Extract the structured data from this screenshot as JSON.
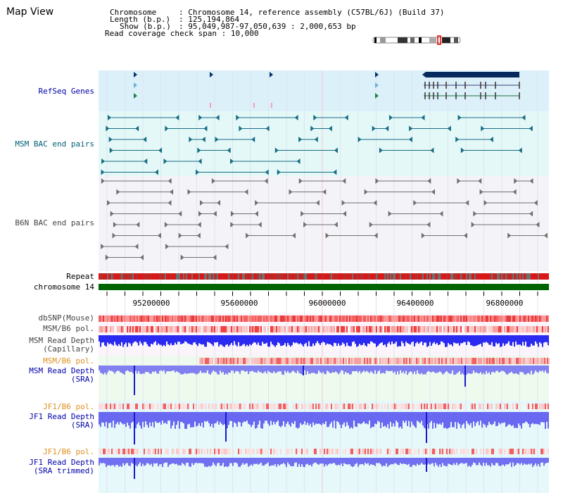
{
  "page": {
    "title": "Map View"
  },
  "info": {
    "chromosome_label": "Chromosome",
    "chromosome_value": "Chromosome 14, reference assembly (C57BL/6J) (Build 37)",
    "length_label": "Length (b.p.)",
    "length_value": "125,194,864",
    "show_label": "Show (b.p.)",
    "show_value": "95,049,987-97,050,639 : 2,000,653 bp",
    "coverage_label": "Read coverage check span",
    "coverage_value": "10,000"
  },
  "tracks": {
    "refseq": "RefSeq Genes",
    "msm_bac": "MSM BAC end pairs",
    "b6n_bac": "B6N BAC end pairs",
    "repeat": "Repeat",
    "chromosome": "chromosome 14",
    "dbsnp": "dbSNP(Mouse)",
    "msm_b6_pol": "MSM/B6 pol.",
    "msm_depth_cap_1": "MSM Read Depth",
    "msm_depth_cap_2": "(Capillary)",
    "msm_b6_pol2": "MSM/B6 pol.",
    "msm_depth_sra_1": "MSM Read Depth",
    "msm_depth_sra_2": "(SRA)",
    "jf1_pol": "JF1/B6 pol.",
    "jf1_depth_1": "JF1 Read Depth",
    "jf1_depth_2": "(SRA)",
    "jf1_pol2": "JF1/B6 pol.",
    "jf1_trim_1": "JF1 Read Depth",
    "jf1_trim_2": "(SRA trimmed)"
  },
  "axis": {
    "ticks": [
      "95200000",
      "95600000",
      "96000000",
      "96400000",
      "96800000"
    ]
  },
  "colors": {
    "refseq_bg": "#dcf0fa",
    "bac_bg": "#e4f8f8",
    "chromosome_bar": "#006400",
    "depth_blue": "#2020e0",
    "orange_label": "#e09020"
  }
}
